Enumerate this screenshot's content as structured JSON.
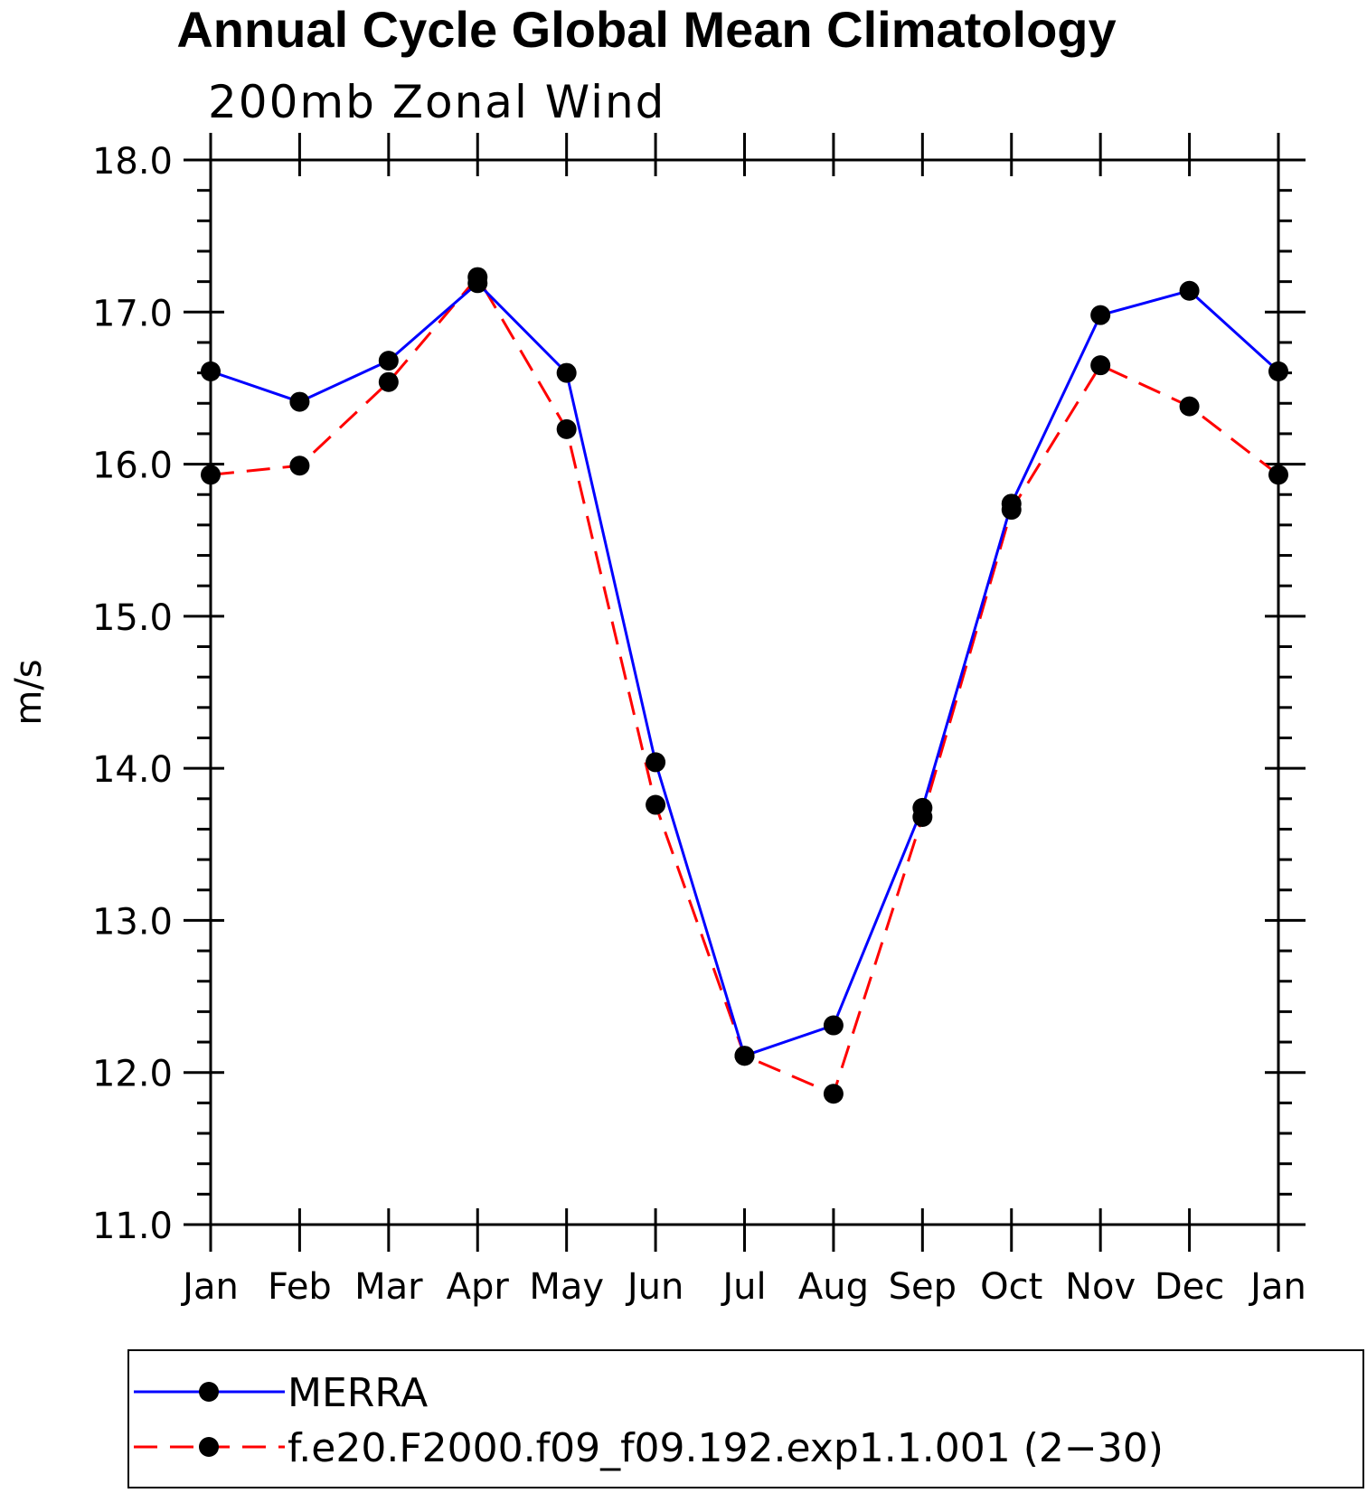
{
  "title": "Annual Cycle Global Mean Climatology",
  "chart_data": {
    "type": "line",
    "subtitle": "200mb Zonal Wind",
    "ylabel": "m/s",
    "xlabel": "",
    "categories": [
      "Jan",
      "Feb",
      "Mar",
      "Apr",
      "May",
      "Jun",
      "Jul",
      "Aug",
      "Sep",
      "Oct",
      "Nov",
      "Dec",
      "Jan"
    ],
    "ylim": [
      11.0,
      18.0
    ],
    "yticks": [
      "11.0",
      "12.0",
      "13.0",
      "14.0",
      "15.0",
      "16.0",
      "17.0",
      "18.0"
    ],
    "legend_placement": "bottom",
    "series": [
      {
        "name": "MERRA",
        "color": "#0000ff",
        "dash": "solid",
        "marker": "filled-circle",
        "values": [
          16.61,
          16.41,
          16.68,
          17.19,
          16.6,
          14.04,
          12.11,
          12.31,
          13.74,
          15.74,
          16.98,
          17.14,
          16.61
        ]
      },
      {
        "name": "f.e20.F2000.f09_f09.192.exp1.1.001 (2−30)",
        "color": "#ff0000",
        "dash": "dashed",
        "marker": "filled-circle",
        "values": [
          15.93,
          15.99,
          16.54,
          17.23,
          16.23,
          13.76,
          12.11,
          11.86,
          13.68,
          15.7,
          16.65,
          16.38,
          15.93
        ]
      }
    ]
  }
}
